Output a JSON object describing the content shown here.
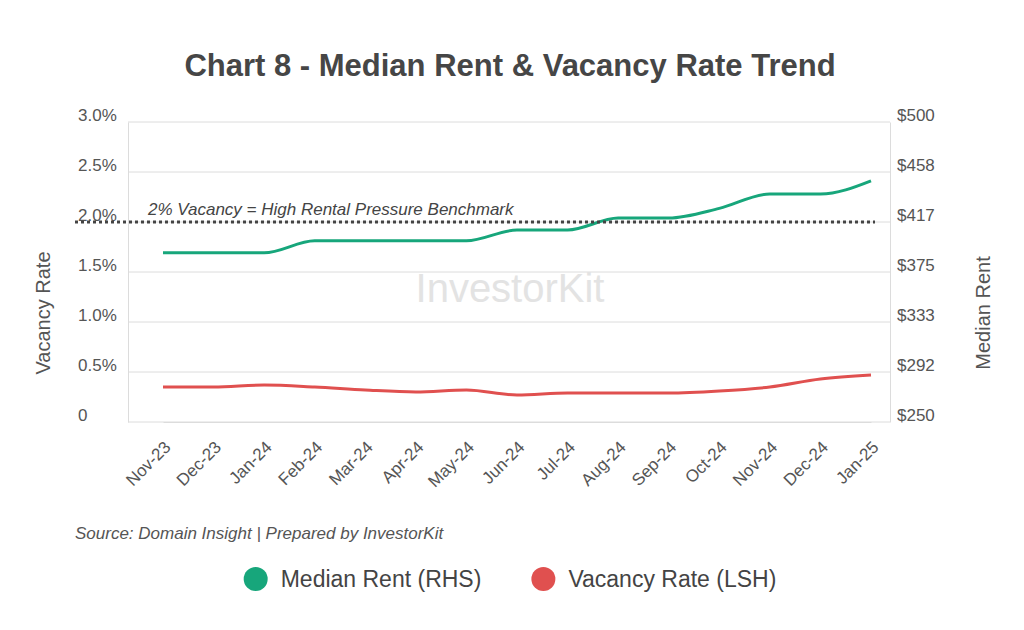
{
  "chart_data": {
    "type": "line",
    "title": "Chart 8 - Median Rent & Vacancy Rate Trend",
    "source": "Source: Domain Insight | Prepared by InvestorKit",
    "watermark": "InvestorKit",
    "y_label": "Vacancy Rate",
    "y2_label": "Median Rent",
    "categories": [
      "Nov-23",
      "Dec-23",
      "Jan-24",
      "Feb-24",
      "Mar-24",
      "Apr-24",
      "May-24",
      "Jun-24",
      "Jul-24",
      "Aug-24",
      "Sep-24",
      "Oct-24",
      "Nov-24",
      "Dec-24",
      "Jan-25"
    ],
    "series": [
      {
        "name": "Median Rent (RHS)",
        "color": "#17a67b",
        "axis": "y2",
        "values": [
          391,
          391,
          391,
          401,
          401,
          401,
          401,
          410,
          410,
          420,
          420,
          428,
          440,
          440,
          451
        ]
      },
      {
        "name": "Vacancy Rate (LSH)",
        "color": "#e0504f",
        "values": [
          0.35,
          0.35,
          0.37,
          0.35,
          0.32,
          0.3,
          0.32,
          0.27,
          0.29,
          0.29,
          0.29,
          0.31,
          0.35,
          0.43,
          0.47
        ]
      }
    ],
    "ylim": [
      0,
      3
    ],
    "yticks": [
      {
        "value": 3,
        "label": "3.0%"
      },
      {
        "value": 2.5,
        "label": "2.5%"
      },
      {
        "value": 2,
        "label": "2.0%"
      },
      {
        "value": 1.5,
        "label": "1.5%"
      },
      {
        "value": 1,
        "label": "1.0%"
      },
      {
        "value": 0.5,
        "label": "0.5%"
      },
      0
    ],
    "y2lim": [
      250,
      500
    ],
    "y2ticks": [
      {
        "value": 500,
        "label": "$500"
      },
      {
        "value": 458.3,
        "label": "$458"
      },
      {
        "value": 416.7,
        "label": "$417"
      },
      {
        "value": 375,
        "label": "$375"
      },
      {
        "value": 333.3,
        "label": "$333"
      },
      {
        "value": 291.7,
        "label": "$292"
      },
      {
        "value": 250,
        "label": "$250"
      }
    ],
    "annotations": [
      {
        "text": "2% Vacancy = High Rental Pressure Benchmark",
        "y": 2
      }
    ],
    "grid": true,
    "legend": "bottom"
  }
}
